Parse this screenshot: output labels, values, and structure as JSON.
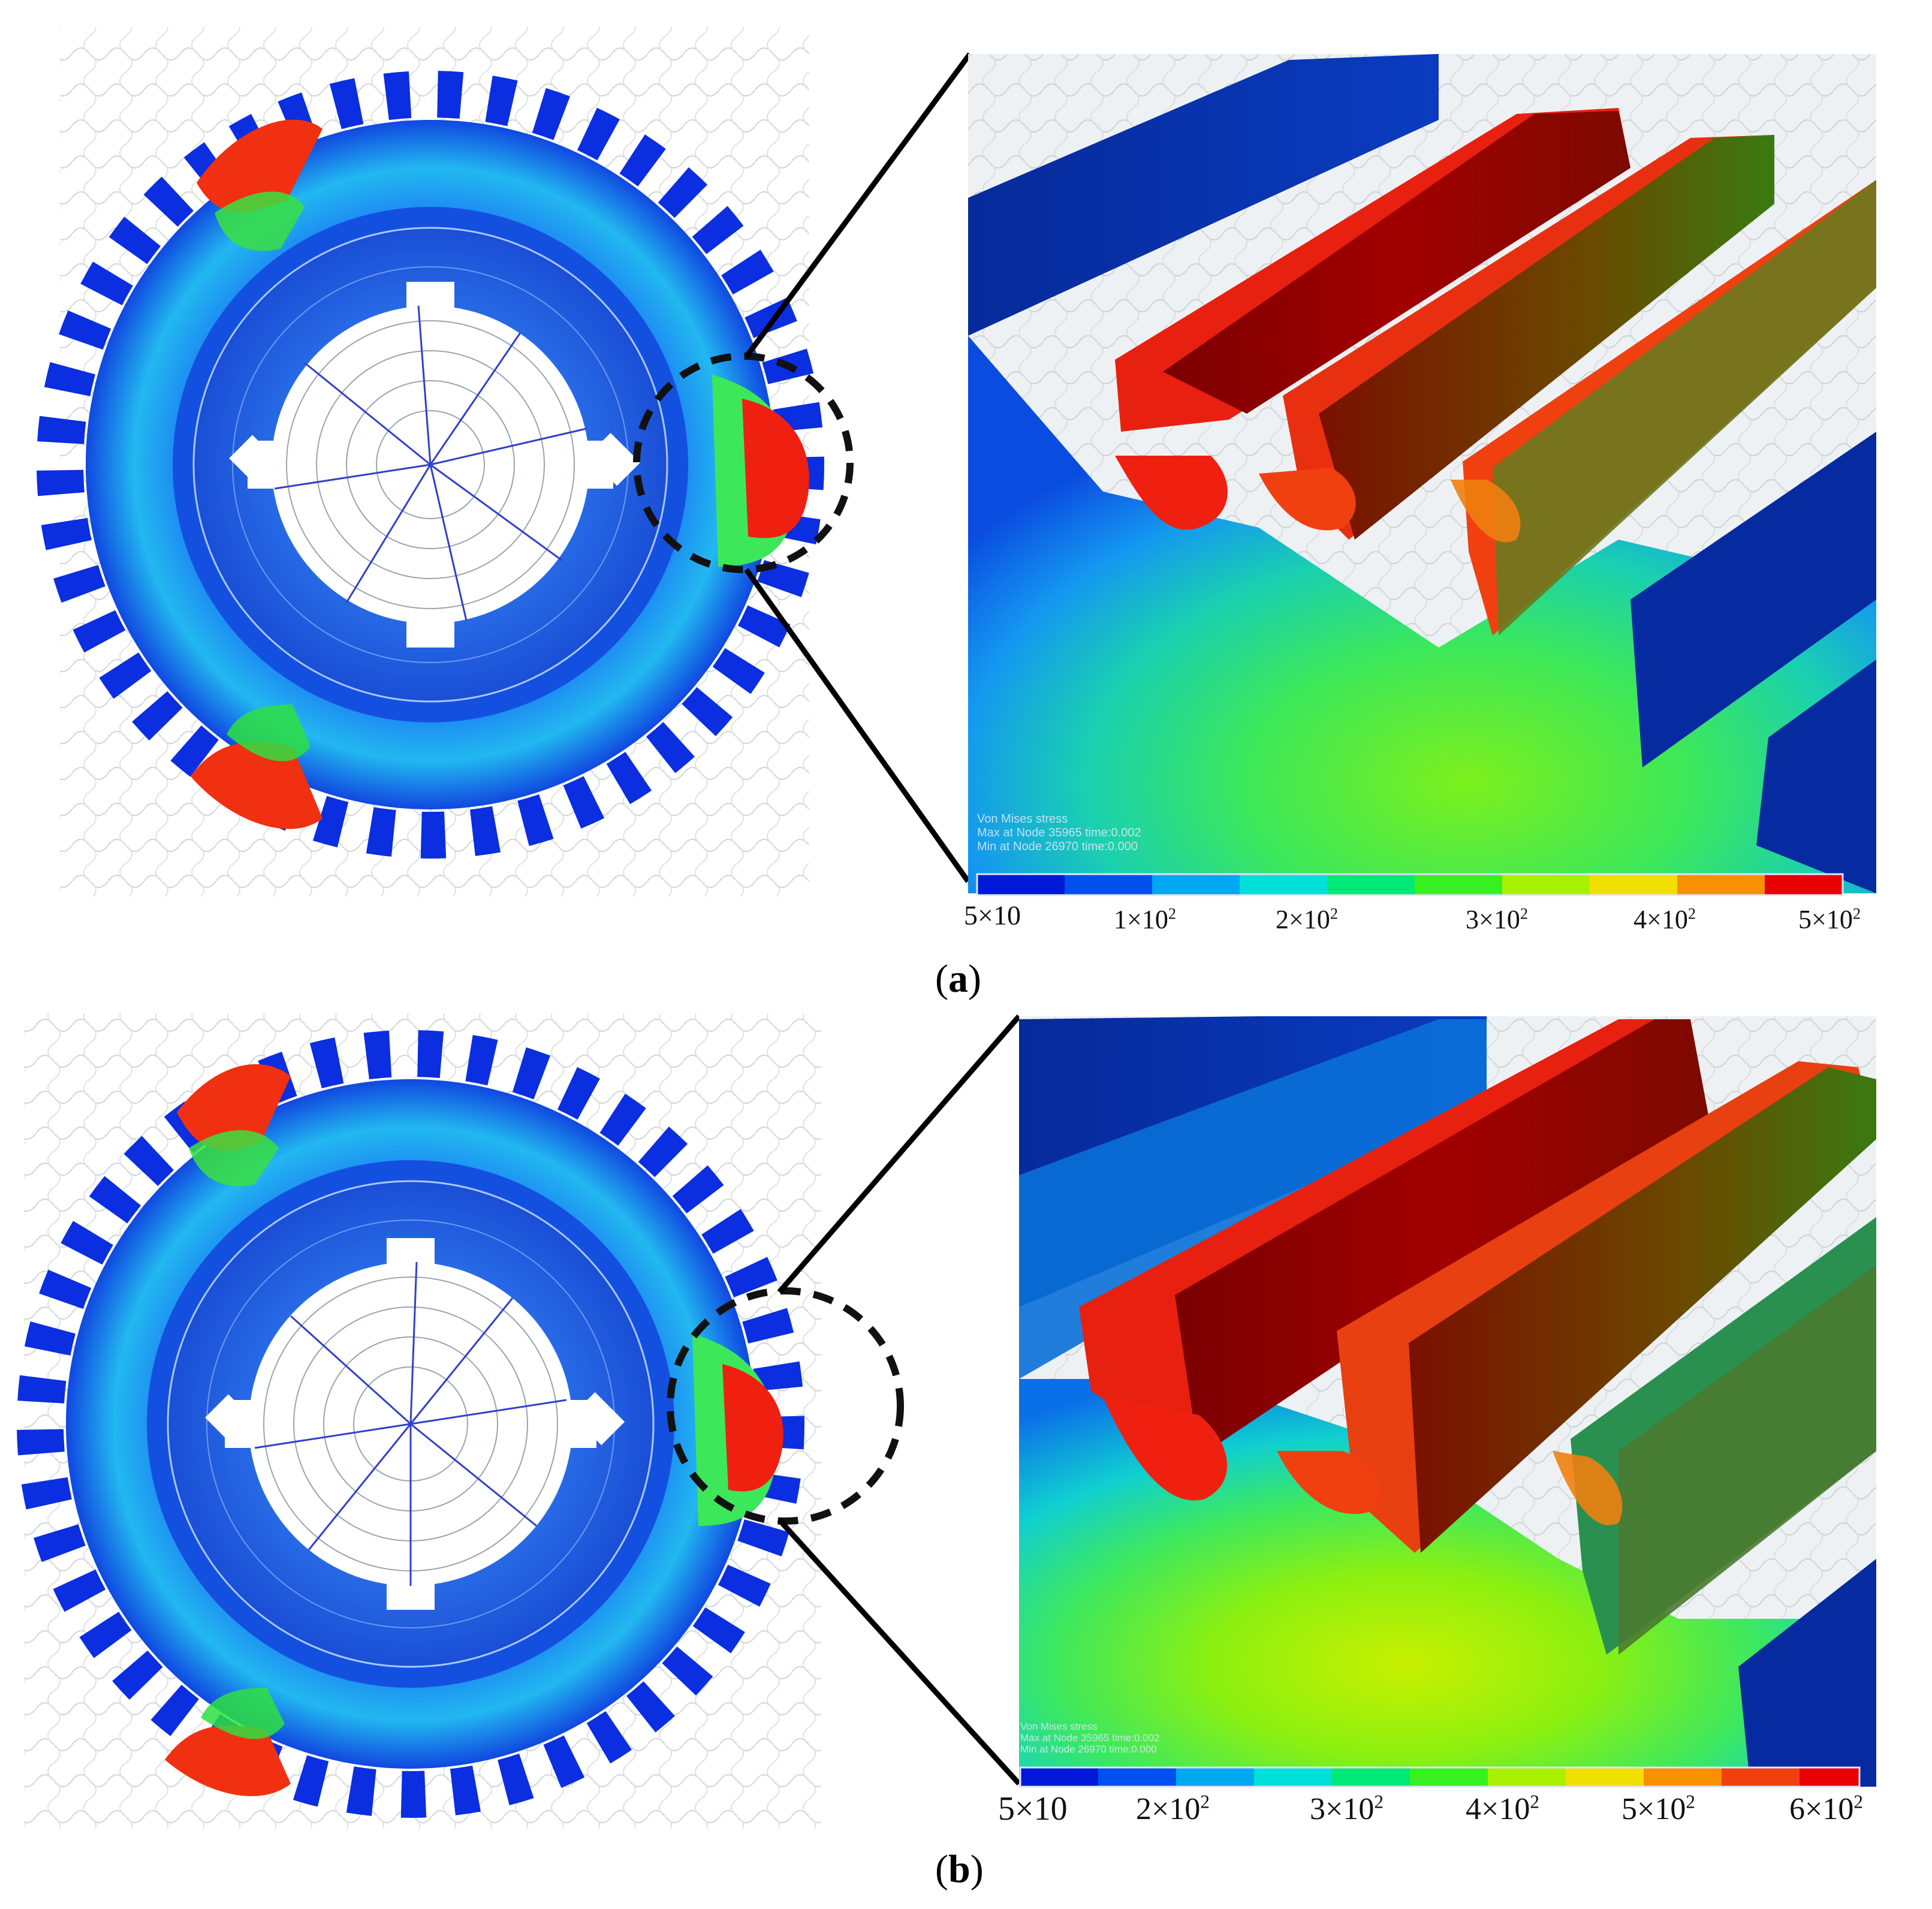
{
  "panels": [
    {
      "id": "a",
      "caption_letter": "a",
      "legend": {
        "title": "Von Mises stress",
        "max_line": "Max at Node 35965 time:0.002",
        "min_line": "Min at Node 26970 time:0.000"
      },
      "scale_labels": [
        {
          "base": "5×10",
          "exp": ""
        },
        {
          "base": "1×10",
          "exp": "2"
        },
        {
          "base": "2×10",
          "exp": "2"
        },
        {
          "base": "3×10",
          "exp": "2"
        },
        {
          "base": "4×10",
          "exp": "2"
        },
        {
          "base": "5×10",
          "exp": "2"
        }
      ]
    },
    {
      "id": "b",
      "caption_letter": "b",
      "legend": {
        "title": "Von Mises stress",
        "max_line": "Max at Node 35965 time:0.002",
        "min_line": "Min at Node 26970 time:0.000"
      },
      "scale_labels": [
        {
          "base": "5×10",
          "exp": ""
        },
        {
          "base": "2×10",
          "exp": "2"
        },
        {
          "base": "3×10",
          "exp": "2"
        },
        {
          "base": "4×10",
          "exp": "2"
        },
        {
          "base": "5×10",
          "exp": "2"
        },
        {
          "base": "6×10",
          "exp": "2"
        }
      ]
    }
  ],
  "colormap": [
    "#0018d8",
    "#0050ee",
    "#00a8f0",
    "#00e0d8",
    "#00e878",
    "#38f020",
    "#a8f000",
    "#f0e000",
    "#f89000",
    "#f04010",
    "#e80000"
  ]
}
